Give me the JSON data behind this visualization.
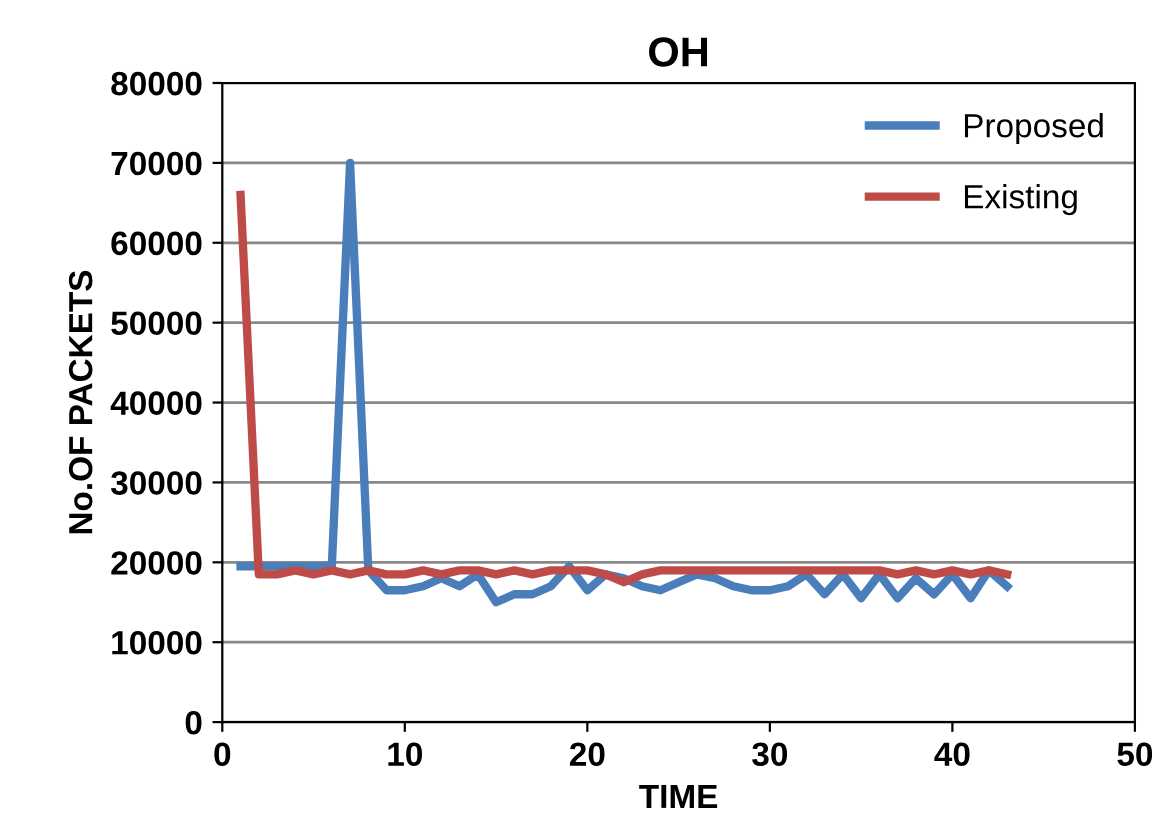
{
  "chart_data": {
    "type": "line",
    "title": "OH",
    "xlabel": "TIME",
    "ylabel": "No.OF PACKETS",
    "x": [
      1,
      2,
      3,
      4,
      5,
      6,
      7,
      8,
      9,
      10,
      11,
      12,
      13,
      14,
      15,
      16,
      17,
      18,
      19,
      20,
      21,
      22,
      23,
      24,
      25,
      26,
      27,
      28,
      29,
      30,
      31,
      32,
      33,
      34,
      35,
      36,
      37,
      38,
      39,
      40,
      41,
      42,
      43
    ],
    "series": [
      {
        "name": "Proposed",
        "color": "#4a7ebb",
        "values": [
          19500,
          19500,
          19500,
          19500,
          19500,
          19500,
          70000,
          19000,
          16500,
          16500,
          17000,
          18000,
          17000,
          18500,
          15000,
          16000,
          16000,
          17000,
          19500,
          16500,
          18500,
          18000,
          17000,
          16500,
          17500,
          18500,
          18000,
          17000,
          16500,
          16500,
          17000,
          18500,
          16000,
          18500,
          15500,
          18500,
          15500,
          18000,
          16000,
          18500,
          15500,
          19000,
          17000
        ]
      },
      {
        "name": "Existing",
        "color": "#be4b48",
        "values": [
          66000,
          18500,
          18500,
          19000,
          18500,
          19000,
          18500,
          19000,
          18500,
          18500,
          19000,
          18500,
          19000,
          19000,
          18500,
          19000,
          18500,
          19000,
          19000,
          19000,
          18500,
          17500,
          18500,
          19000,
          19000,
          19000,
          19000,
          19000,
          19000,
          19000,
          19000,
          19000,
          19000,
          19000,
          19000,
          19000,
          18500,
          19000,
          18500,
          19000,
          18500,
          19000,
          18500
        ]
      }
    ],
    "xlim": [
      0,
      50
    ],
    "xticks": [
      0,
      10,
      20,
      30,
      40,
      50
    ],
    "ylim": [
      0,
      80000
    ],
    "yticks": [
      0,
      10000,
      20000,
      30000,
      40000,
      50000,
      60000,
      70000,
      80000
    ],
    "grid": "y",
    "legend": "top right",
    "marker": "none",
    "line_style": "solid"
  }
}
